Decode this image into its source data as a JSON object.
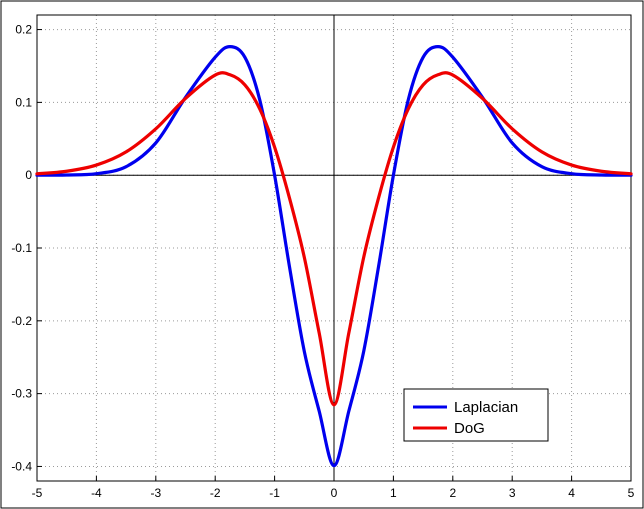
{
  "chart_data": {
    "type": "line",
    "title": "",
    "xlabel": "",
    "ylabel": "",
    "xlim": [
      -5,
      5
    ],
    "ylim": [
      -0.42,
      0.22
    ],
    "grid": true,
    "legend_position": "bottom-right",
    "x_ticks": [
      -5,
      -4,
      -3,
      -2,
      -1,
      0,
      1,
      2,
      3,
      4,
      5
    ],
    "x_tick_labels": [
      "-5",
      "-4",
      "-3",
      "-2",
      "-1",
      "0",
      "1",
      "2",
      "3",
      "4",
      "5"
    ],
    "y_ticks": [
      -0.4,
      -0.3,
      -0.2,
      -0.1,
      0,
      0.1,
      0.2
    ],
    "y_tick_labels": [
      "-0.4",
      "-0.3",
      "-0.2",
      "-0.1",
      "0",
      "0.1",
      "0.2"
    ],
    "x": [
      -5,
      -4.5,
      -4,
      -3.5,
      -3,
      -2.5,
      -2,
      -1.75,
      -1.5,
      -1.25,
      -1,
      -0.75,
      -0.5,
      -0.25,
      0,
      0.25,
      0.5,
      0.75,
      1,
      1.25,
      1.5,
      1.75,
      2,
      2.5,
      3,
      3.5,
      4,
      4.5,
      5
    ],
    "series": [
      {
        "name": "Laplacian",
        "color": "#0000ee",
        "values": [
          0.0,
          0.0003,
          0.0021,
          0.0117,
          0.0443,
          0.1068,
          0.162,
          0.1766,
          0.1619,
          0.1034,
          0.0,
          -0.1255,
          -0.242,
          -0.3239,
          -0.3989,
          -0.3239,
          -0.242,
          -0.1255,
          0.0,
          0.1034,
          0.1619,
          0.1766,
          0.162,
          0.1068,
          0.0443,
          0.0117,
          0.0021,
          0.0003,
          0.0
        ]
      },
      {
        "name": "DoG",
        "color": "#ee0000",
        "values": [
          0.0019,
          0.0054,
          0.0139,
          0.032,
          0.0637,
          0.1054,
          0.1375,
          0.1379,
          0.124,
          0.091,
          0.0385,
          -0.0313,
          -0.1128,
          -0.2165,
          -0.3154,
          -0.2165,
          -0.1128,
          -0.0313,
          0.0385,
          0.091,
          0.124,
          0.1379,
          0.1375,
          0.1054,
          0.0637,
          0.032,
          0.0139,
          0.0054,
          0.0019
        ]
      }
    ]
  }
}
